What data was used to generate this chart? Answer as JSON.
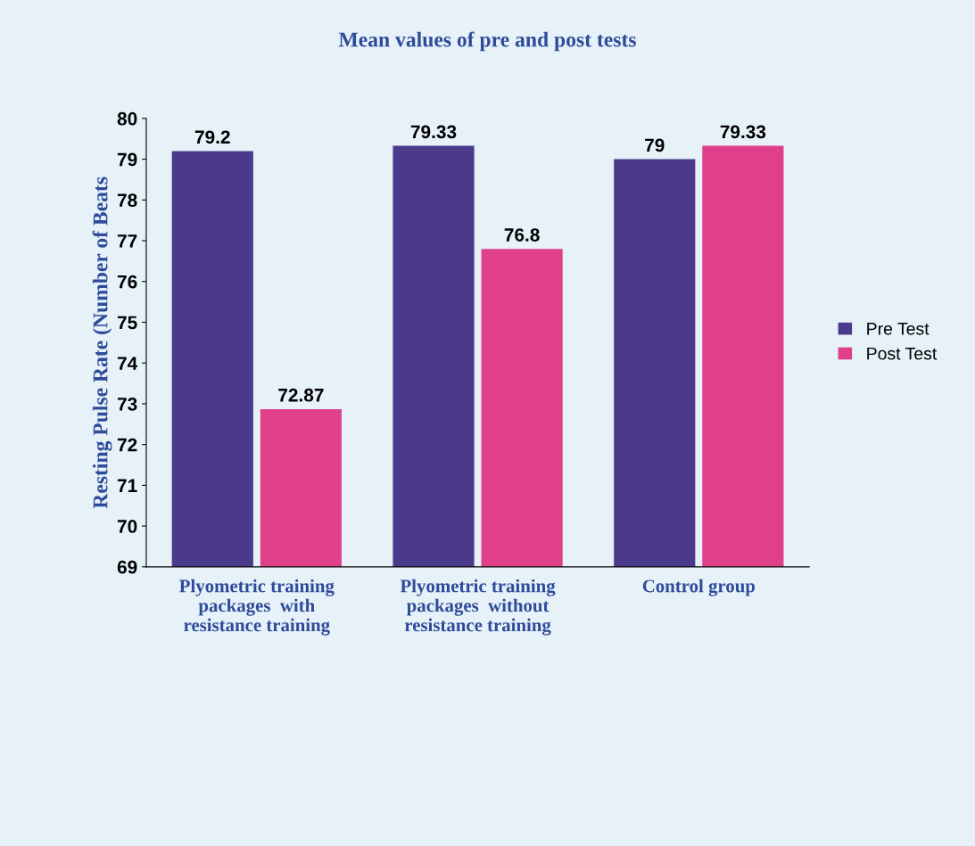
{
  "chart_data": {
    "type": "bar",
    "title": "Mean values of pre and post tests",
    "ylabel": "Resting Pulse Rate (Number of Beats",
    "categories": [
      "Plyometric training\npackages  with\nresistance training",
      "Plyometric training\npackages  without\nresistance training",
      "Control group"
    ],
    "series": [
      {
        "name": "Pre Test",
        "color": "#4b3a8c",
        "values": [
          79.2,
          79.33,
          79
        ]
      },
      {
        "name": "Post Test",
        "color": "#e0408a",
        "values": [
          72.87,
          76.8,
          79.33
        ]
      }
    ],
    "ylim": [
      69,
      80
    ],
    "yticks": [
      69,
      70,
      71,
      72,
      73,
      74,
      75,
      76,
      77,
      78,
      79,
      80
    ],
    "data_labels": true,
    "grid": false,
    "legend": "right"
  }
}
